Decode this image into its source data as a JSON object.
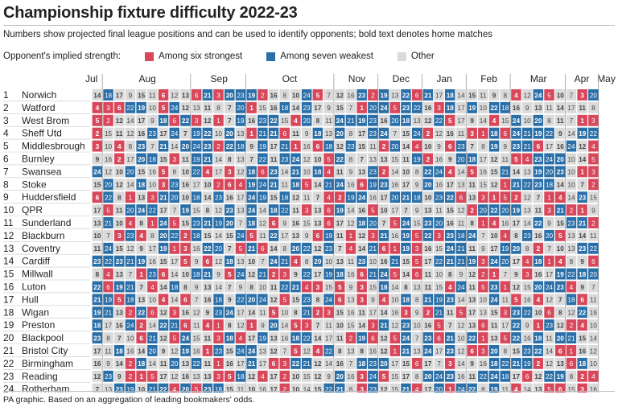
{
  "title": "Championship fixture difficulty 2022-23",
  "subtitle": "Numbers show projected final league positions and can be used to identify opponents; bold text denotes home matches",
  "legend": {
    "label": "Opponent's implied strength:",
    "items": [
      {
        "label": "Among six strongest",
        "color": "#d9475b"
      },
      {
        "label": "Among seven weakest",
        "color": "#2a6fa8"
      },
      {
        "label": "Other",
        "color": "#dadada"
      }
    ]
  },
  "footer": "PA graphic. Based on an aggregation of leading bookmakers' odds.",
  "chart_data": {
    "type": "table",
    "months": [
      "Jul",
      "Aug",
      "Sep",
      "Oct",
      "Nov",
      "Dec",
      "Jan",
      "Feb",
      "Mar",
      "Apr",
      "May"
    ],
    "teams": [
      "Norwich",
      "Watford",
      "West Brom",
      "Sheff Utd",
      "Middlesbrough",
      "Burnley",
      "Swansea",
      "Stoke",
      "Huddersfield",
      "QPR",
      "Sunderland",
      "Blackburn",
      "Coventry",
      "Cardiff",
      "Millwall",
      "Luton",
      "Hull",
      "Wigan",
      "Preston",
      "Blackpool",
      "Bristol City",
      "Birmingham",
      "Reading",
      "Rotherham"
    ],
    "rows": [
      [
        14,
        18,
        17,
        9,
        15,
        11,
        6,
        12,
        13,
        6,
        21,
        3,
        20,
        23,
        19,
        2,
        16,
        8,
        10,
        24,
        5,
        7,
        12,
        16,
        23,
        2,
        19,
        13,
        22,
        6,
        21,
        17,
        18,
        14,
        15,
        11,
        9,
        8,
        4,
        12,
        24,
        5,
        10,
        7,
        3,
        20
      ],
      [
        4,
        3,
        6,
        22,
        19,
        10,
        5,
        24,
        12,
        13,
        11,
        8,
        7,
        20,
        1,
        15,
        16,
        18,
        14,
        23,
        17,
        9,
        15,
        7,
        1,
        20,
        24,
        5,
        23,
        22,
        16,
        3,
        18,
        17,
        19,
        10,
        22,
        18,
        16,
        9,
        13,
        11,
        14,
        17,
        11,
        8
      ],
      [
        5,
        2,
        12,
        14,
        17,
        9,
        18,
        6,
        22,
        3,
        12,
        1,
        7,
        19,
        16,
        23,
        22,
        15,
        4,
        20,
        8,
        11,
        24,
        21,
        19,
        23,
        16,
        20,
        18,
        13,
        12,
        22,
        5,
        17,
        9,
        14,
        4,
        15,
        24,
        10,
        20,
        8,
        11,
        7,
        1,
        3
      ],
      [
        2,
        15,
        11,
        12,
        16,
        23,
        17,
        24,
        7,
        19,
        22,
        10,
        20,
        13,
        1,
        21,
        21,
        6,
        11,
        9,
        18,
        13,
        20,
        8,
        17,
        23,
        24,
        7,
        15,
        24,
        2,
        12,
        16,
        11,
        3,
        1,
        18,
        6,
        24,
        21,
        19,
        22,
        9,
        14,
        19,
        22
      ],
      [
        3,
        10,
        4,
        8,
        23,
        7,
        21,
        14,
        20,
        24,
        23,
        2,
        22,
        18,
        9,
        19,
        17,
        21,
        1,
        16,
        6,
        18,
        12,
        23,
        15,
        11,
        2,
        20,
        14,
        4,
        10,
        9,
        6,
        23,
        7,
        8,
        19,
        9,
        23,
        21,
        6,
        17,
        16,
        24,
        12,
        4
      ],
      [
        9,
        16,
        2,
        17,
        20,
        18,
        15,
        3,
        11,
        19,
        21,
        14,
        8,
        13,
        7,
        22,
        11,
        23,
        24,
        12,
        10,
        5,
        22,
        8,
        7,
        13,
        13,
        15,
        11,
        19,
        2,
        16,
        9,
        20,
        18,
        17,
        12,
        11,
        5,
        4,
        23,
        24,
        20,
        10,
        14,
        5
      ],
      [
        24,
        12,
        10,
        20,
        15,
        16,
        5,
        8,
        10,
        22,
        4,
        17,
        3,
        12,
        18,
        6,
        23,
        14,
        21,
        10,
        18,
        4,
        11,
        9,
        13,
        23,
        2,
        14,
        10,
        8,
        22,
        24,
        4,
        14,
        5,
        16,
        15,
        21,
        14,
        13,
        19,
        20,
        23,
        10,
        1,
        3
      ],
      [
        15,
        20,
        12,
        14,
        18,
        10,
        3,
        23,
        16,
        17,
        10,
        2,
        6,
        4,
        19,
        24,
        21,
        11,
        18,
        5,
        14,
        21,
        24,
        16,
        6,
        19,
        23,
        16,
        17,
        9,
        20,
        16,
        17,
        13,
        11,
        15,
        12,
        1,
        21,
        22,
        23,
        18,
        14,
        10,
        7,
        2
      ],
      [
        6,
        22,
        8,
        1,
        13,
        3,
        21,
        20,
        10,
        18,
        14,
        23,
        16,
        17,
        24,
        19,
        15,
        18,
        12,
        11,
        7,
        4,
        2,
        19,
        24,
        16,
        17,
        20,
        21,
        18,
        10,
        23,
        22,
        6,
        13,
        3,
        1,
        5,
        2,
        12,
        7,
        1,
        4,
        14,
        23,
        15
      ],
      [
        17,
        5,
        11,
        20,
        24,
        22,
        17,
        7,
        19,
        15,
        8,
        12,
        23,
        13,
        24,
        14,
        18,
        22,
        11,
        3,
        13,
        6,
        19,
        14,
        16,
        5,
        10,
        17,
        7,
        9,
        13,
        11,
        15,
        12,
        2,
        20,
        22,
        20,
        19,
        13,
        11,
        3,
        21,
        2,
        1,
        9
      ],
      [
        13,
        21,
        10,
        4,
        8,
        1,
        24,
        5,
        15,
        23,
        21,
        19,
        20,
        7,
        18,
        12,
        6,
        9,
        16,
        15,
        13,
        6,
        17,
        12,
        18,
        20,
        7,
        5,
        24,
        15,
        23,
        20,
        16,
        11,
        8,
        1,
        4,
        16,
        17,
        14,
        22,
        9,
        15,
        23,
        21,
        2
      ],
      [
        10,
        7,
        3,
        23,
        4,
        8,
        20,
        22,
        2,
        18,
        15,
        14,
        15,
        24,
        5,
        11,
        22,
        17,
        13,
        9,
        6,
        19,
        11,
        1,
        12,
        3,
        21,
        16,
        19,
        5,
        22,
        3,
        23,
        18,
        24,
        7,
        10,
        4,
        8,
        23,
        16,
        20,
        5,
        13,
        14,
        11
      ],
      [
        11,
        24,
        15,
        12,
        9,
        17,
        19,
        1,
        3,
        16,
        22,
        20,
        7,
        5,
        21,
        6,
        14,
        8,
        20,
        22,
        12,
        23,
        7,
        4,
        14,
        21,
        6,
        1,
        19,
        3,
        16,
        15,
        24,
        21,
        11,
        9,
        17,
        19,
        20,
        8,
        2,
        7,
        10,
        13,
        23,
        22
      ],
      [
        23,
        22,
        23,
        21,
        19,
        16,
        15,
        17,
        5,
        9,
        6,
        12,
        18,
        13,
        10,
        7,
        24,
        21,
        4,
        8,
        20,
        10,
        13,
        11,
        23,
        10,
        16,
        21,
        15,
        5,
        17,
        22,
        21,
        21,
        19,
        3,
        24,
        20,
        17,
        4,
        18,
        1,
        4,
        8,
        9,
        6
      ],
      [
        8,
        4,
        13,
        7,
        1,
        23,
        6,
        14,
        10,
        18,
        21,
        9,
        5,
        24,
        12,
        21,
        2,
        3,
        9,
        22,
        17,
        19,
        18,
        16,
        6,
        21,
        24,
        5,
        14,
        6,
        11,
        10,
        8,
        9,
        12,
        2,
        1,
        7,
        9,
        3,
        16,
        17,
        19,
        22,
        18,
        20
      ],
      [
        22,
        6,
        19,
        21,
        7,
        4,
        14,
        18,
        8,
        9,
        13,
        14,
        7,
        9,
        8,
        10,
        11,
        22,
        21,
        4,
        3,
        15,
        5,
        9,
        3,
        15,
        18,
        14,
        8,
        13,
        11,
        15,
        4,
        24,
        11,
        5,
        23,
        1,
        12,
        15,
        20,
        24,
        23,
        4,
        9,
        7
      ],
      [
        21,
        19,
        5,
        18,
        13,
        10,
        4,
        14,
        6,
        7,
        16,
        18,
        9,
        22,
        20,
        24,
        12,
        5,
        15,
        23,
        8,
        24,
        6,
        13,
        3,
        9,
        4,
        10,
        18,
        8,
        21,
        19,
        23,
        14,
        13,
        10,
        24,
        11,
        5,
        16,
        4,
        12,
        7,
        18,
        6,
        11
      ],
      [
        19,
        21,
        13,
        2,
        22,
        6,
        12,
        3,
        16,
        12,
        9,
        23,
        24,
        17,
        14,
        11,
        5,
        10,
        8,
        21,
        2,
        3,
        15,
        16,
        11,
        17,
        14,
        16,
        3,
        9,
        2,
        21,
        11,
        5,
        17,
        13,
        15,
        3,
        23,
        22,
        10,
        6,
        8,
        12,
        22,
        16
      ],
      [
        18,
        17,
        16,
        24,
        2,
        14,
        22,
        21,
        6,
        11,
        4,
        1,
        8,
        12,
        1,
        9,
        20,
        14,
        5,
        3,
        7,
        11,
        10,
        15,
        14,
        3,
        21,
        12,
        23,
        10,
        16,
        5,
        7,
        12,
        13,
        6,
        11,
        17,
        22,
        9,
        1,
        23,
        12,
        2,
        4,
        10
      ],
      [
        23,
        8,
        7,
        10,
        6,
        21,
        12,
        5,
        24,
        15,
        11,
        3,
        18,
        4,
        17,
        19,
        13,
        16,
        18,
        22,
        14,
        17,
        11,
        2,
        19,
        6,
        12,
        5,
        24,
        7,
        23,
        6,
        21,
        10,
        22,
        1,
        13,
        5,
        22,
        16,
        18,
        11,
        20,
        21,
        15,
        14
      ],
      [
        17,
        11,
        18,
        16,
        14,
        20,
        9,
        12,
        19,
        16,
        1,
        23,
        15,
        24,
        24,
        13,
        12,
        7,
        5,
        12,
        4,
        22,
        8,
        13,
        8,
        16,
        12,
        1,
        21,
        13,
        24,
        17,
        23,
        12,
        6,
        3,
        20,
        8,
        15,
        23,
        22,
        14,
        6,
        1,
        16,
        12
      ],
      [
        16,
        9,
        14,
        2,
        18,
        14,
        11,
        20,
        13,
        22,
        11,
        1,
        16,
        17,
        21,
        17,
        6,
        3,
        22,
        21,
        12,
        14,
        16,
        7,
        18,
        23,
        20,
        17,
        15,
        6,
        17,
        7,
        3,
        14,
        9,
        16,
        18,
        22,
        21,
        19,
        2,
        12,
        13,
        6,
        18,
        10
      ],
      [
        12,
        23,
        9,
        2,
        1,
        5,
        17,
        12,
        16,
        13,
        13,
        3,
        5,
        18,
        12,
        4,
        17,
        2,
        10,
        15,
        12,
        9,
        20,
        16,
        3,
        24,
        5,
        15,
        17,
        8,
        20,
        24,
        23,
        16,
        11,
        22,
        24,
        18,
        17,
        6,
        12,
        22,
        19,
        8,
        2,
        4
      ],
      [
        7,
        13,
        23,
        19,
        10,
        21,
        22,
        4,
        20,
        5,
        23,
        18,
        15,
        11,
        10,
        16,
        17,
        2,
        10,
        14,
        15,
        22,
        21,
        8,
        3,
        23,
        12,
        15,
        21,
        4,
        17,
        20,
        1,
        24,
        22,
        8,
        19,
        11,
        4,
        14,
        13,
        5,
        6,
        15,
        3,
        16
      ]
    ],
    "strongest_positions": [
      1,
      2,
      3,
      4,
      5,
      6
    ],
    "weakest_positions": [
      18,
      19,
      20,
      21,
      22,
      23,
      24
    ]
  }
}
